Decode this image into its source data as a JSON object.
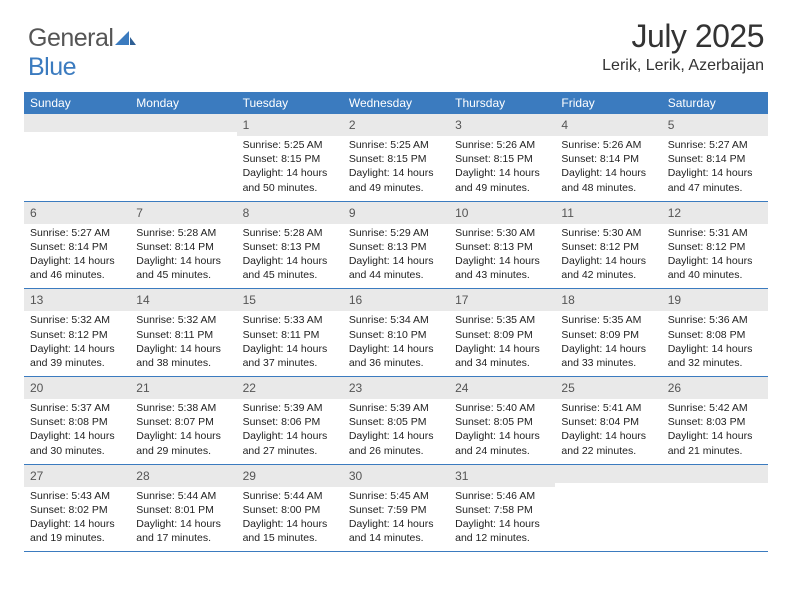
{
  "brand": {
    "text1": "General",
    "text2": "Blue"
  },
  "title": "July 2025",
  "location": "Lerik, Lerik, Azerbaijan",
  "colors": {
    "header_bg": "#3b7bbf",
    "header_text": "#ffffff",
    "daynum_bg": "#e9e9e9",
    "row_border": "#3b7bbf",
    "body_text": "#222222",
    "title_text": "#333333"
  },
  "layout": {
    "columns": 7,
    "rows": 5
  },
  "dayHeaders": [
    "Sunday",
    "Monday",
    "Tuesday",
    "Wednesday",
    "Thursday",
    "Friday",
    "Saturday"
  ],
  "weeks": [
    [
      {
        "day": "",
        "sunrise": "",
        "sunset": "",
        "daylight": ""
      },
      {
        "day": "",
        "sunrise": "",
        "sunset": "",
        "daylight": ""
      },
      {
        "day": "1",
        "sunrise": "Sunrise: 5:25 AM",
        "sunset": "Sunset: 8:15 PM",
        "daylight": "Daylight: 14 hours and 50 minutes."
      },
      {
        "day": "2",
        "sunrise": "Sunrise: 5:25 AM",
        "sunset": "Sunset: 8:15 PM",
        "daylight": "Daylight: 14 hours and 49 minutes."
      },
      {
        "day": "3",
        "sunrise": "Sunrise: 5:26 AM",
        "sunset": "Sunset: 8:15 PM",
        "daylight": "Daylight: 14 hours and 49 minutes."
      },
      {
        "day": "4",
        "sunrise": "Sunrise: 5:26 AM",
        "sunset": "Sunset: 8:14 PM",
        "daylight": "Daylight: 14 hours and 48 minutes."
      },
      {
        "day": "5",
        "sunrise": "Sunrise: 5:27 AM",
        "sunset": "Sunset: 8:14 PM",
        "daylight": "Daylight: 14 hours and 47 minutes."
      }
    ],
    [
      {
        "day": "6",
        "sunrise": "Sunrise: 5:27 AM",
        "sunset": "Sunset: 8:14 PM",
        "daylight": "Daylight: 14 hours and 46 minutes."
      },
      {
        "day": "7",
        "sunrise": "Sunrise: 5:28 AM",
        "sunset": "Sunset: 8:14 PM",
        "daylight": "Daylight: 14 hours and 45 minutes."
      },
      {
        "day": "8",
        "sunrise": "Sunrise: 5:28 AM",
        "sunset": "Sunset: 8:13 PM",
        "daylight": "Daylight: 14 hours and 45 minutes."
      },
      {
        "day": "9",
        "sunrise": "Sunrise: 5:29 AM",
        "sunset": "Sunset: 8:13 PM",
        "daylight": "Daylight: 14 hours and 44 minutes."
      },
      {
        "day": "10",
        "sunrise": "Sunrise: 5:30 AM",
        "sunset": "Sunset: 8:13 PM",
        "daylight": "Daylight: 14 hours and 43 minutes."
      },
      {
        "day": "11",
        "sunrise": "Sunrise: 5:30 AM",
        "sunset": "Sunset: 8:12 PM",
        "daylight": "Daylight: 14 hours and 42 minutes."
      },
      {
        "day": "12",
        "sunrise": "Sunrise: 5:31 AM",
        "sunset": "Sunset: 8:12 PM",
        "daylight": "Daylight: 14 hours and 40 minutes."
      }
    ],
    [
      {
        "day": "13",
        "sunrise": "Sunrise: 5:32 AM",
        "sunset": "Sunset: 8:12 PM",
        "daylight": "Daylight: 14 hours and 39 minutes."
      },
      {
        "day": "14",
        "sunrise": "Sunrise: 5:32 AM",
        "sunset": "Sunset: 8:11 PM",
        "daylight": "Daylight: 14 hours and 38 minutes."
      },
      {
        "day": "15",
        "sunrise": "Sunrise: 5:33 AM",
        "sunset": "Sunset: 8:11 PM",
        "daylight": "Daylight: 14 hours and 37 minutes."
      },
      {
        "day": "16",
        "sunrise": "Sunrise: 5:34 AM",
        "sunset": "Sunset: 8:10 PM",
        "daylight": "Daylight: 14 hours and 36 minutes."
      },
      {
        "day": "17",
        "sunrise": "Sunrise: 5:35 AM",
        "sunset": "Sunset: 8:09 PM",
        "daylight": "Daylight: 14 hours and 34 minutes."
      },
      {
        "day": "18",
        "sunrise": "Sunrise: 5:35 AM",
        "sunset": "Sunset: 8:09 PM",
        "daylight": "Daylight: 14 hours and 33 minutes."
      },
      {
        "day": "19",
        "sunrise": "Sunrise: 5:36 AM",
        "sunset": "Sunset: 8:08 PM",
        "daylight": "Daylight: 14 hours and 32 minutes."
      }
    ],
    [
      {
        "day": "20",
        "sunrise": "Sunrise: 5:37 AM",
        "sunset": "Sunset: 8:08 PM",
        "daylight": "Daylight: 14 hours and 30 minutes."
      },
      {
        "day": "21",
        "sunrise": "Sunrise: 5:38 AM",
        "sunset": "Sunset: 8:07 PM",
        "daylight": "Daylight: 14 hours and 29 minutes."
      },
      {
        "day": "22",
        "sunrise": "Sunrise: 5:39 AM",
        "sunset": "Sunset: 8:06 PM",
        "daylight": "Daylight: 14 hours and 27 minutes."
      },
      {
        "day": "23",
        "sunrise": "Sunrise: 5:39 AM",
        "sunset": "Sunset: 8:05 PM",
        "daylight": "Daylight: 14 hours and 26 minutes."
      },
      {
        "day": "24",
        "sunrise": "Sunrise: 5:40 AM",
        "sunset": "Sunset: 8:05 PM",
        "daylight": "Daylight: 14 hours and 24 minutes."
      },
      {
        "day": "25",
        "sunrise": "Sunrise: 5:41 AM",
        "sunset": "Sunset: 8:04 PM",
        "daylight": "Daylight: 14 hours and 22 minutes."
      },
      {
        "day": "26",
        "sunrise": "Sunrise: 5:42 AM",
        "sunset": "Sunset: 8:03 PM",
        "daylight": "Daylight: 14 hours and 21 minutes."
      }
    ],
    [
      {
        "day": "27",
        "sunrise": "Sunrise: 5:43 AM",
        "sunset": "Sunset: 8:02 PM",
        "daylight": "Daylight: 14 hours and 19 minutes."
      },
      {
        "day": "28",
        "sunrise": "Sunrise: 5:44 AM",
        "sunset": "Sunset: 8:01 PM",
        "daylight": "Daylight: 14 hours and 17 minutes."
      },
      {
        "day": "29",
        "sunrise": "Sunrise: 5:44 AM",
        "sunset": "Sunset: 8:00 PM",
        "daylight": "Daylight: 14 hours and 15 minutes."
      },
      {
        "day": "30",
        "sunrise": "Sunrise: 5:45 AM",
        "sunset": "Sunset: 7:59 PM",
        "daylight": "Daylight: 14 hours and 14 minutes."
      },
      {
        "day": "31",
        "sunrise": "Sunrise: 5:46 AM",
        "sunset": "Sunset: 7:58 PM",
        "daylight": "Daylight: 14 hours and 12 minutes."
      },
      {
        "day": "",
        "sunrise": "",
        "sunset": "",
        "daylight": ""
      },
      {
        "day": "",
        "sunrise": "",
        "sunset": "",
        "daylight": ""
      }
    ]
  ]
}
